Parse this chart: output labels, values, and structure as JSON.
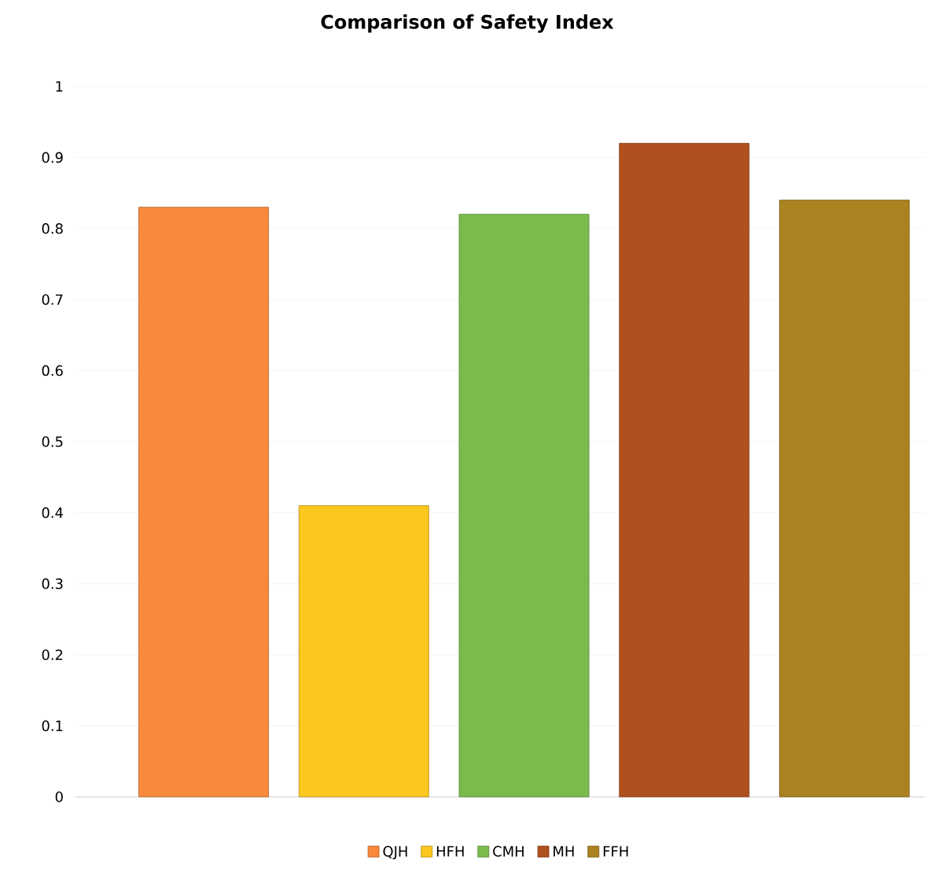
{
  "chart_data": {
    "type": "bar",
    "title": "Comparison of Safety Index",
    "categories": [
      null,
      null,
      null,
      null,
      null
    ],
    "series": [
      {
        "name": "QJH",
        "color": "#f98a3c",
        "values": [
          0.83,
          null,
          null,
          null,
          null
        ]
      },
      {
        "name": "HFH",
        "color": "#fcc820",
        "values": [
          null,
          0.41,
          null,
          null,
          null
        ]
      },
      {
        "name": "CMH",
        "color": "#7bbb4e",
        "values": [
          null,
          null,
          0.82,
          null,
          null
        ]
      },
      {
        "name": "MH",
        "color": "#b0501e",
        "values": [
          null,
          null,
          null,
          0.92,
          null
        ]
      },
      {
        "name": "FFH",
        "color": "#aa8220",
        "values": [
          null,
          null,
          null,
          null,
          0.84
        ]
      }
    ],
    "ylim": [
      0,
      1
    ],
    "yticks": [
      0,
      0.1,
      0.2,
      0.3,
      0.4,
      0.5,
      0.6,
      0.7,
      0.8,
      0.9,
      1
    ],
    "grid": "y",
    "legend": "bottom"
  }
}
